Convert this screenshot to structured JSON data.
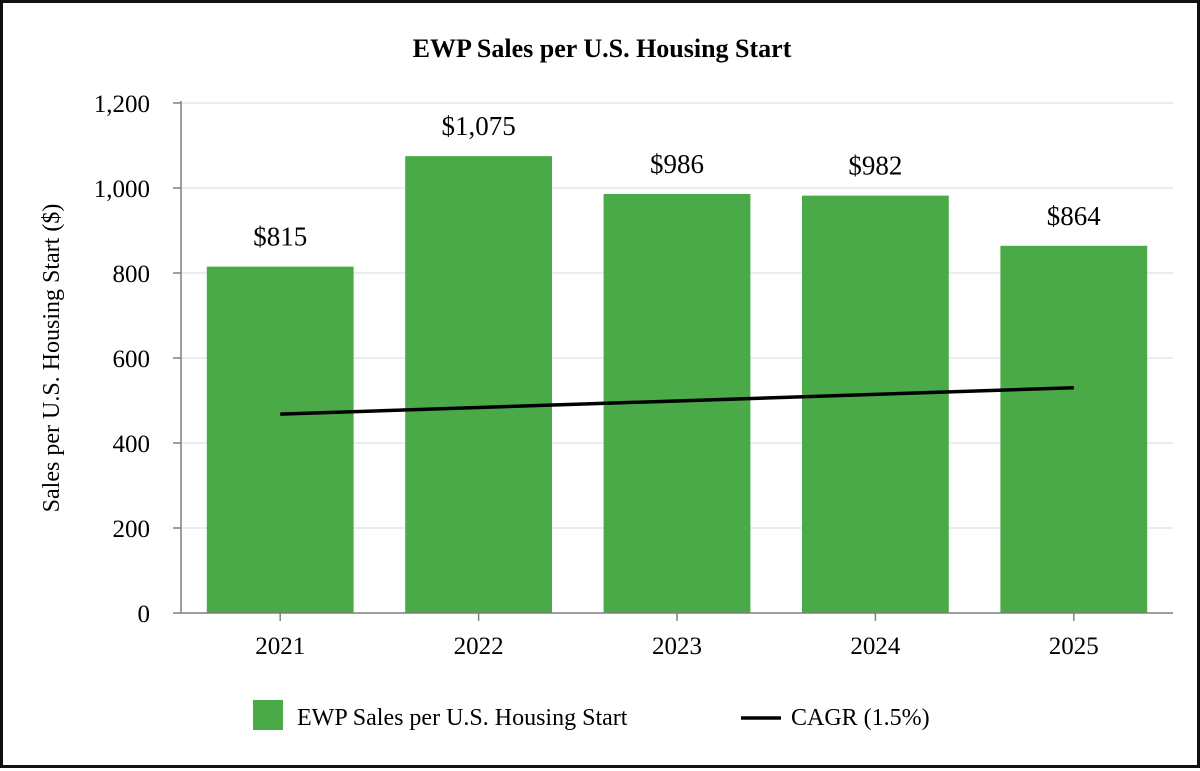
{
  "chart_data": {
    "type": "bar",
    "title": "EWP Sales per U.S. Housing Start",
    "xlabel": "",
    "ylabel": "Sales per U.S. Housing Start ($)",
    "categories": [
      "2021",
      "2022",
      "2023",
      "2024",
      "2025"
    ],
    "series": [
      {
        "name": "EWP Sales per U.S. Housing Start",
        "type": "bar",
        "values": [
          815,
          1075,
          986,
          982,
          864
        ],
        "data_labels": [
          "$815",
          "$1,075",
          "$986",
          "$982",
          "$864"
        ],
        "color": "#4aaa47"
      },
      {
        "name": "CAGR (1.5%)",
        "type": "line",
        "start": {
          "category": "2021",
          "value": 468
        },
        "end": {
          "category": "2025",
          "value": 530
        },
        "color": "#000000"
      }
    ],
    "ylim": [
      0,
      1200
    ],
    "yticks": [
      0,
      200,
      400,
      600,
      800,
      1000,
      1200
    ],
    "ytick_labels": [
      "0",
      "200",
      "400",
      "600",
      "800",
      "1,000",
      "1,200"
    ],
    "grid": true,
    "legend_position": "bottom-center"
  }
}
